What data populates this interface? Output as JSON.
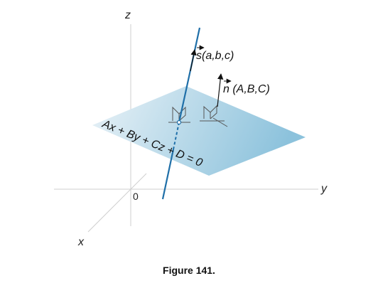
{
  "axes": {
    "z_label": "z",
    "y_label": "y",
    "x_label": "x",
    "origin_label": "0"
  },
  "line_direction": {
    "label": "s(a,b,c)"
  },
  "plane_normal": {
    "label": "n (A,B,C)"
  },
  "plane": {
    "equation": "Ax + By + Cz + D = 0",
    "fill_color_light": "#e6f0f6",
    "fill_color_dark": "#8fc3dd"
  },
  "line_color": "#1f6fa8",
  "caption": "Figure 141."
}
